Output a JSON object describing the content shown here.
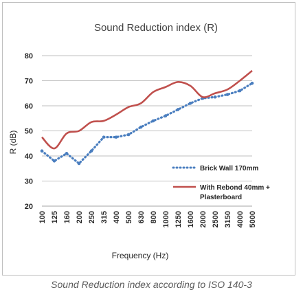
{
  "chart_data": {
    "type": "line",
    "title": "Sound Reduction index (R)",
    "xlabel": "Frequency (Hz)",
    "ylabel": "R (dB)",
    "ylim": [
      20,
      80
    ],
    "yticks": [
      20,
      30,
      40,
      50,
      60,
      70,
      80
    ],
    "grid": "horizontal",
    "legend_position": "right",
    "x": [
      "100",
      "125",
      "160",
      "200",
      "250",
      "315",
      "400",
      "500",
      "630",
      "800",
      "1000",
      "1250",
      "1600",
      "2000",
      "2500",
      "3150",
      "4000",
      "5000"
    ],
    "series": [
      {
        "name": "Brick Wall 170mm",
        "style": "dotted",
        "color": "#4a7ebf",
        "values": [
          42,
          38,
          41,
          37,
          42,
          47.5,
          47.5,
          48.5,
          51.5,
          54,
          56,
          58.5,
          61,
          63,
          63.5,
          64.5,
          66,
          69
        ]
      },
      {
        "name": "With Rebond 40mm + Plasterboard",
        "legend_lines": [
          "With Rebond 40mm +",
          "Plasterboard"
        ],
        "style": "solid",
        "color": "#c0504d",
        "values": [
          47.5,
          43,
          49,
          50,
          53.5,
          54,
          56.5,
          59.5,
          61,
          65.5,
          67.5,
          69.5,
          68,
          63.5,
          65,
          66.5,
          70,
          74
        ]
      }
    ]
  },
  "caption": "Sound Reduction index according to ISO 140-3"
}
